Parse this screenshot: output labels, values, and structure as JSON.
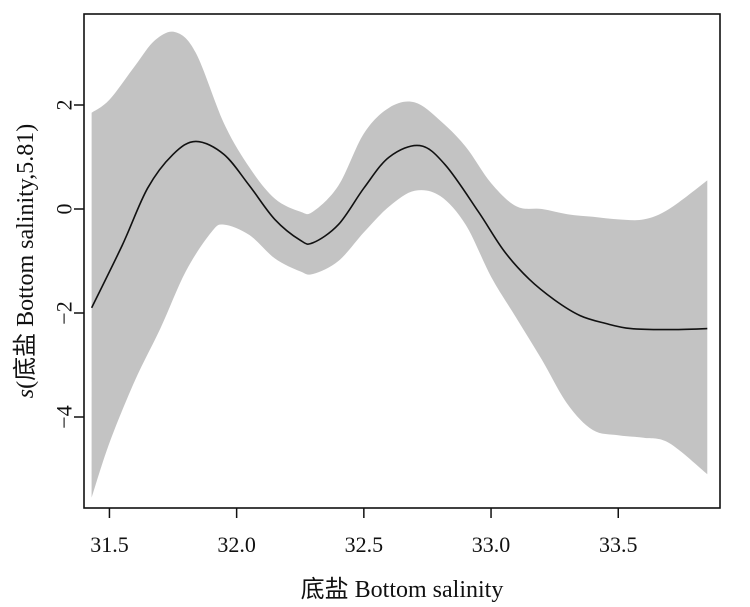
{
  "chart_data": {
    "type": "line",
    "title": "",
    "xlabel": "底盐 Bottom salinity",
    "ylabel_italic": "s",
    "ylabel_rest": "(底盐 Bottom salinity,5.81)",
    "xlim": [
      31.4,
      33.9
    ],
    "ylim": [
      -5.75,
      3.75
    ],
    "x_ticks": [
      "31.5",
      "32.0",
      "32.5",
      "33.0",
      "33.5"
    ],
    "x_tick_values": [
      31.5,
      32.0,
      32.5,
      33.0,
      33.5
    ],
    "y_ticks": [
      "−4",
      "−2",
      "0",
      "2"
    ],
    "y_tick_values": [
      -4,
      -2,
      0,
      2
    ],
    "grid": false,
    "series": [
      {
        "role": "fit",
        "x": [
          31.43,
          31.55,
          31.65,
          31.75,
          31.84,
          31.95,
          32.05,
          32.15,
          32.25,
          32.3,
          32.4,
          32.5,
          32.6,
          32.72,
          32.82,
          32.95,
          33.05,
          33.15,
          33.25,
          33.35,
          33.45,
          33.55,
          33.7,
          33.85
        ],
        "values": [
          -1.9,
          -0.7,
          0.4,
          1.05,
          1.3,
          1.05,
          0.45,
          -0.2,
          -0.6,
          -0.65,
          -0.3,
          0.4,
          1.0,
          1.22,
          0.85,
          -0.05,
          -0.8,
          -1.35,
          -1.75,
          -2.05,
          -2.2,
          -2.3,
          -2.32,
          -2.3
        ]
      },
      {
        "role": "upper",
        "x": [
          31.43,
          31.5,
          31.6,
          31.68,
          31.76,
          31.84,
          31.95,
          32.05,
          32.15,
          32.25,
          32.3,
          32.4,
          32.5,
          32.6,
          32.7,
          32.8,
          32.9,
          33.0,
          33.1,
          33.2,
          33.3,
          33.4,
          33.5,
          33.6,
          33.7,
          33.85
        ],
        "values": [
          1.85,
          2.1,
          2.75,
          3.25,
          3.4,
          3.0,
          1.65,
          0.8,
          0.2,
          -0.05,
          -0.05,
          0.45,
          1.45,
          1.95,
          2.05,
          1.7,
          1.2,
          0.5,
          0.05,
          0.0,
          -0.1,
          -0.15,
          -0.2,
          -0.2,
          0.0,
          0.55
        ]
      },
      {
        "role": "lower",
        "x": [
          31.43,
          31.5,
          31.6,
          31.7,
          31.8,
          31.9,
          31.95,
          32.05,
          32.15,
          32.25,
          32.3,
          32.4,
          32.5,
          32.6,
          32.7,
          32.8,
          32.9,
          33.0,
          33.1,
          33.2,
          33.3,
          33.4,
          33.5,
          33.6,
          33.7,
          33.85
        ],
        "values": [
          -5.55,
          -4.5,
          -3.3,
          -2.3,
          -1.2,
          -0.45,
          -0.3,
          -0.5,
          -0.95,
          -1.2,
          -1.25,
          -1.0,
          -0.45,
          0.05,
          0.35,
          0.25,
          -0.3,
          -1.3,
          -2.1,
          -2.9,
          -3.75,
          -4.25,
          -4.35,
          -4.4,
          -4.5,
          -5.1
        ]
      }
    ],
    "colors": {
      "band": "#c3c3c3",
      "line": "#111111",
      "frame": "#111111"
    }
  }
}
